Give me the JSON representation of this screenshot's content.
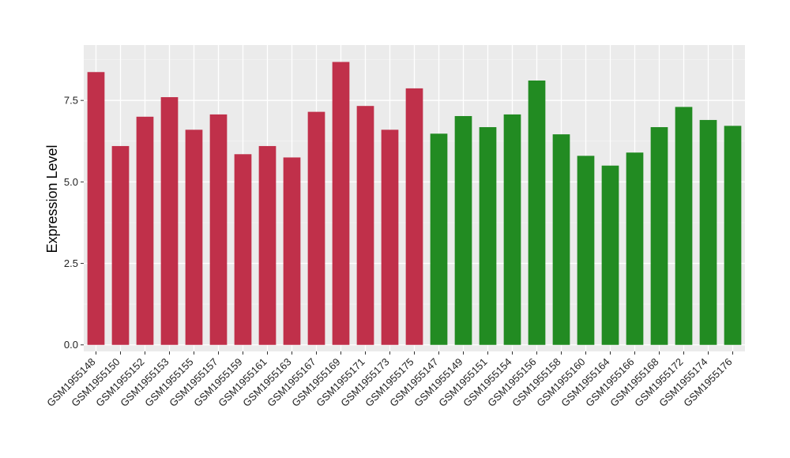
{
  "chart_data": {
    "type": "bar",
    "ylabel": "Expression Level",
    "xlabel": "",
    "ylim": [
      -0.2,
      9.2
    ],
    "yticks": [
      0.0,
      2.5,
      5.0,
      7.5
    ],
    "ytick_labels": [
      "0.0",
      "2.5",
      "5.0",
      "7.5"
    ],
    "grid": true,
    "background_color": "#ebebeb",
    "categories": [
      "GSM1955148",
      "GSM1955150",
      "GSM1955152",
      "GSM1955153",
      "GSM1955155",
      "GSM1955157",
      "GSM1955159",
      "GSM1955161",
      "GSM1955163",
      "GSM1955167",
      "GSM1955169",
      "GSM1955171",
      "GSM1955173",
      "GSM1955175",
      "GSM1955147",
      "GSM1955149",
      "GSM1955151",
      "GSM1955154",
      "GSM1955156",
      "GSM1955158",
      "GSM1955160",
      "GSM1955164",
      "GSM1955166",
      "GSM1955168",
      "GSM1955172",
      "GSM1955174",
      "GSM1955176"
    ],
    "values": [
      8.37,
      6.1,
      7.0,
      7.6,
      6.6,
      7.07,
      5.85,
      6.1,
      5.75,
      7.15,
      8.68,
      7.33,
      6.6,
      7.87,
      6.48,
      7.02,
      6.68,
      7.07,
      8.11,
      6.46,
      5.8,
      5.5,
      5.9,
      6.68,
      7.3,
      6.9,
      6.72
    ],
    "groups": [
      "red",
      "red",
      "red",
      "red",
      "red",
      "red",
      "red",
      "red",
      "red",
      "red",
      "red",
      "red",
      "red",
      "red",
      "green",
      "green",
      "green",
      "green",
      "green",
      "green",
      "green",
      "green",
      "green",
      "green",
      "green",
      "green",
      "green"
    ],
    "colors": {
      "red": "#c0304a",
      "green": "#228b22"
    }
  }
}
